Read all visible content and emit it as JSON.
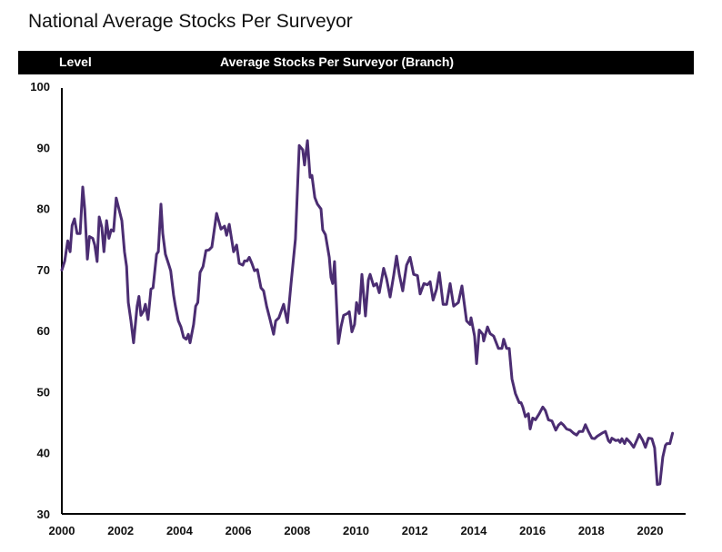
{
  "page": {
    "title": "National Average Stocks Per Surveyor"
  },
  "header": {
    "left_label": "Level",
    "center_label": "Average Stocks Per Surveyor (Branch)"
  },
  "colors": {
    "line": "#4b2d72",
    "header_bg": "#000000",
    "header_text": "#ffffff"
  },
  "chart_data": {
    "type": "line",
    "title": "Average Stocks Per Surveyor (Branch)",
    "xlabel": "",
    "ylabel": "Level",
    "xlim": [
      2000,
      2020.8
    ],
    "ylim": [
      30,
      100
    ],
    "x_ticks": [
      2000,
      2002,
      2004,
      2006,
      2008,
      2010,
      2012,
      2014,
      2016,
      2018,
      2020
    ],
    "y_ticks": [
      30,
      40,
      50,
      60,
      70,
      80,
      90,
      100
    ],
    "grid": false,
    "legend": "none",
    "series": [
      {
        "name": "Average Stocks Per Surveyor (Branch)",
        "x": [
          2000.0,
          2000.1,
          2000.2,
          2000.28,
          2000.35,
          2000.43,
          2000.52,
          2000.62,
          2000.71,
          2000.78,
          2000.87,
          2000.94,
          2001.05,
          2001.12,
          2001.2,
          2001.27,
          2001.36,
          2001.43,
          2001.52,
          2001.6,
          2001.68,
          2001.76,
          2001.85,
          2002.04,
          2002.13,
          2002.2,
          2002.26,
          2002.35,
          2002.44,
          2002.56,
          2002.62,
          2002.69,
          2002.78,
          2002.84,
          2002.93,
          2003.03,
          2003.1,
          2003.22,
          2003.28,
          2003.37,
          2003.43,
          2003.52,
          2003.64,
          2003.7,
          2003.8,
          2003.86,
          2003.96,
          2004.05,
          2004.14,
          2004.23,
          2004.3,
          2004.36,
          2004.48,
          2004.55,
          2004.62,
          2004.7,
          2004.8,
          2004.9,
          2005.0,
          2005.1,
          2005.26,
          2005.41,
          2005.53,
          2005.6,
          2005.69,
          2005.78,
          2005.84,
          2005.94,
          2006.03,
          2006.15,
          2006.21,
          2006.3,
          2006.37,
          2006.46,
          2006.55,
          2006.65,
          2006.77,
          2006.86,
          2006.96,
          2007.08,
          2007.2,
          2007.27,
          2007.38,
          2007.54,
          2007.67,
          2007.79,
          2007.94,
          2008.07,
          2008.19,
          2008.25,
          2008.35,
          2008.44,
          2008.5,
          2008.6,
          2008.69,
          2008.81,
          2008.87,
          2008.96,
          2009.09,
          2009.15,
          2009.21,
          2009.27,
          2009.4,
          2009.49,
          2009.58,
          2009.71,
          2009.77,
          2009.86,
          2009.95,
          2010.02,
          2010.11,
          2010.2,
          2010.32,
          2010.42,
          2010.48,
          2010.6,
          2010.7,
          2010.79,
          2010.94,
          2011.04,
          2011.16,
          2011.28,
          2011.38,
          2011.47,
          2011.59,
          2011.72,
          2011.84,
          2011.96,
          2012.09,
          2012.18,
          2012.31,
          2012.43,
          2012.52,
          2012.62,
          2012.74,
          2012.83,
          2012.96,
          2013.08,
          2013.2,
          2013.32,
          2013.48,
          2013.6,
          2013.76,
          2013.88,
          2013.91,
          2014.03,
          2014.1,
          2014.19,
          2014.31,
          2014.34,
          2014.47,
          2014.56,
          2014.68,
          2014.84,
          2014.96,
          2015.02,
          2015.12,
          2015.21,
          2015.3,
          2015.42,
          2015.55,
          2015.61,
          2015.67,
          2015.76,
          2015.86,
          2015.92,
          2016.01,
          2016.1,
          2016.23,
          2016.35,
          2016.44,
          2016.54,
          2016.66,
          2016.79,
          2016.88,
          2016.97,
          2017.06,
          2017.16,
          2017.28,
          2017.4,
          2017.5,
          2017.59,
          2017.71,
          2017.8,
          2017.9,
          2018.02,
          2018.11,
          2018.2,
          2018.36,
          2018.48,
          2018.58,
          2018.64,
          2018.7,
          2018.83,
          2018.92,
          2018.98,
          2019.04,
          2019.13,
          2019.2,
          2019.32,
          2019.44,
          2019.57,
          2019.63,
          2019.75,
          2019.84,
          2019.94,
          2020.06,
          2020.15,
          2020.24,
          2020.33,
          2020.43,
          2020.52,
          2020.57,
          2020.67,
          2020.76
        ],
        "values": [
          69.9,
          71.4,
          74.7,
          72.9,
          77.2,
          78.3,
          75.9,
          75.9,
          83.5,
          79.9,
          71.7,
          75.4,
          75.1,
          74.0,
          71.3,
          78.6,
          76.9,
          72.9,
          78.0,
          75.1,
          76.5,
          76.3,
          81.7,
          78.0,
          72.9,
          70.5,
          64.6,
          61.6,
          58.0,
          64.0,
          65.6,
          62.5,
          63.2,
          64.3,
          61.8,
          66.8,
          67.0,
          72.5,
          72.9,
          80.7,
          75.9,
          72.5,
          70.7,
          69.8,
          65.8,
          64.0,
          61.6,
          60.6,
          58.9,
          58.6,
          59.4,
          58.0,
          61.0,
          64.0,
          64.6,
          69.5,
          70.5,
          73.1,
          73.2,
          73.7,
          79.2,
          76.6,
          77.1,
          75.6,
          77.4,
          74.7,
          72.9,
          74.0,
          71.0,
          70.7,
          71.4,
          71.4,
          72.0,
          71.0,
          69.8,
          70.0,
          67.0,
          66.5,
          64.0,
          61.8,
          59.4,
          61.6,
          62.1,
          64.3,
          61.3,
          67.6,
          75.0,
          90.3,
          89.6,
          87.1,
          91.1,
          85.1,
          85.4,
          81.8,
          80.7,
          79.9,
          76.5,
          75.7,
          72.0,
          68.7,
          67.7,
          71.3,
          57.9,
          60.6,
          62.5,
          62.8,
          63.1,
          59.8,
          61.0,
          64.6,
          62.8,
          69.2,
          62.4,
          68.3,
          69.2,
          67.3,
          67.7,
          66.2,
          70.2,
          68.5,
          65.5,
          69.0,
          72.2,
          69.2,
          66.5,
          70.7,
          72.0,
          69.2,
          69.0,
          66.0,
          67.7,
          67.5,
          68.0,
          65.0,
          66.8,
          69.5,
          64.3,
          64.3,
          67.7,
          64.0,
          64.6,
          67.3,
          61.6,
          61.0,
          62.1,
          59.1,
          54.6,
          60.1,
          59.4,
          58.3,
          60.6,
          59.5,
          59.1,
          57.1,
          57.1,
          58.6,
          57.1,
          57.1,
          52.1,
          49.7,
          48.2,
          48.2,
          47.5,
          45.9,
          46.4,
          43.9,
          45.7,
          45.4,
          46.4,
          47.5,
          46.9,
          45.4,
          45.2,
          43.7,
          44.5,
          44.9,
          44.5,
          43.9,
          43.7,
          43.2,
          42.9,
          43.5,
          43.5,
          44.6,
          43.5,
          42.4,
          42.3,
          42.7,
          43.2,
          43.5,
          42.0,
          41.7,
          42.4,
          42.0,
          42.1,
          41.7,
          42.3,
          41.5,
          42.3,
          41.7,
          40.9,
          42.3,
          43.0,
          42.0,
          40.9,
          42.4,
          42.3,
          40.8,
          34.8,
          34.9,
          39.3,
          41.2,
          41.5,
          41.5,
          43.2
        ]
      }
    ]
  }
}
